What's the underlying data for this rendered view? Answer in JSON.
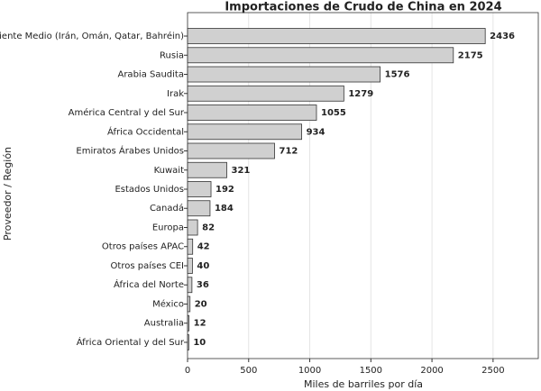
{
  "chart_data": {
    "type": "barh",
    "title": "Importaciones de Crudo de China en 2024",
    "x_label": "Miles de barriles por día",
    "y_label": "Proveedor / Región",
    "categories": [
      "Oriente Medio (Irán, Omán, Qatar, Bahréin)",
      "Rusia",
      "Arabia Saudita",
      "Irak",
      "América Central y del Sur",
      "África Occidental",
      "Emiratos Árabes Unidos",
      "Kuwait",
      "Estados Unidos",
      "Canadá",
      "Europa",
      "Otros países APAC",
      "Otros países CEI",
      "África del Norte",
      "México",
      "Australia",
      "África Oriental y del Sur"
    ],
    "values": [
      2436,
      2175,
      1576,
      1279,
      1055,
      934,
      712,
      321,
      192,
      184,
      82,
      42,
      40,
      36,
      20,
      12,
      10
    ],
    "color": "#d0d0d0",
    "edge_color": "#333333",
    "xlim": [
      0,
      2870
    ],
    "xticks": [
      0,
      500,
      1000,
      1500,
      2000,
      2500
    ],
    "grid": true
  }
}
